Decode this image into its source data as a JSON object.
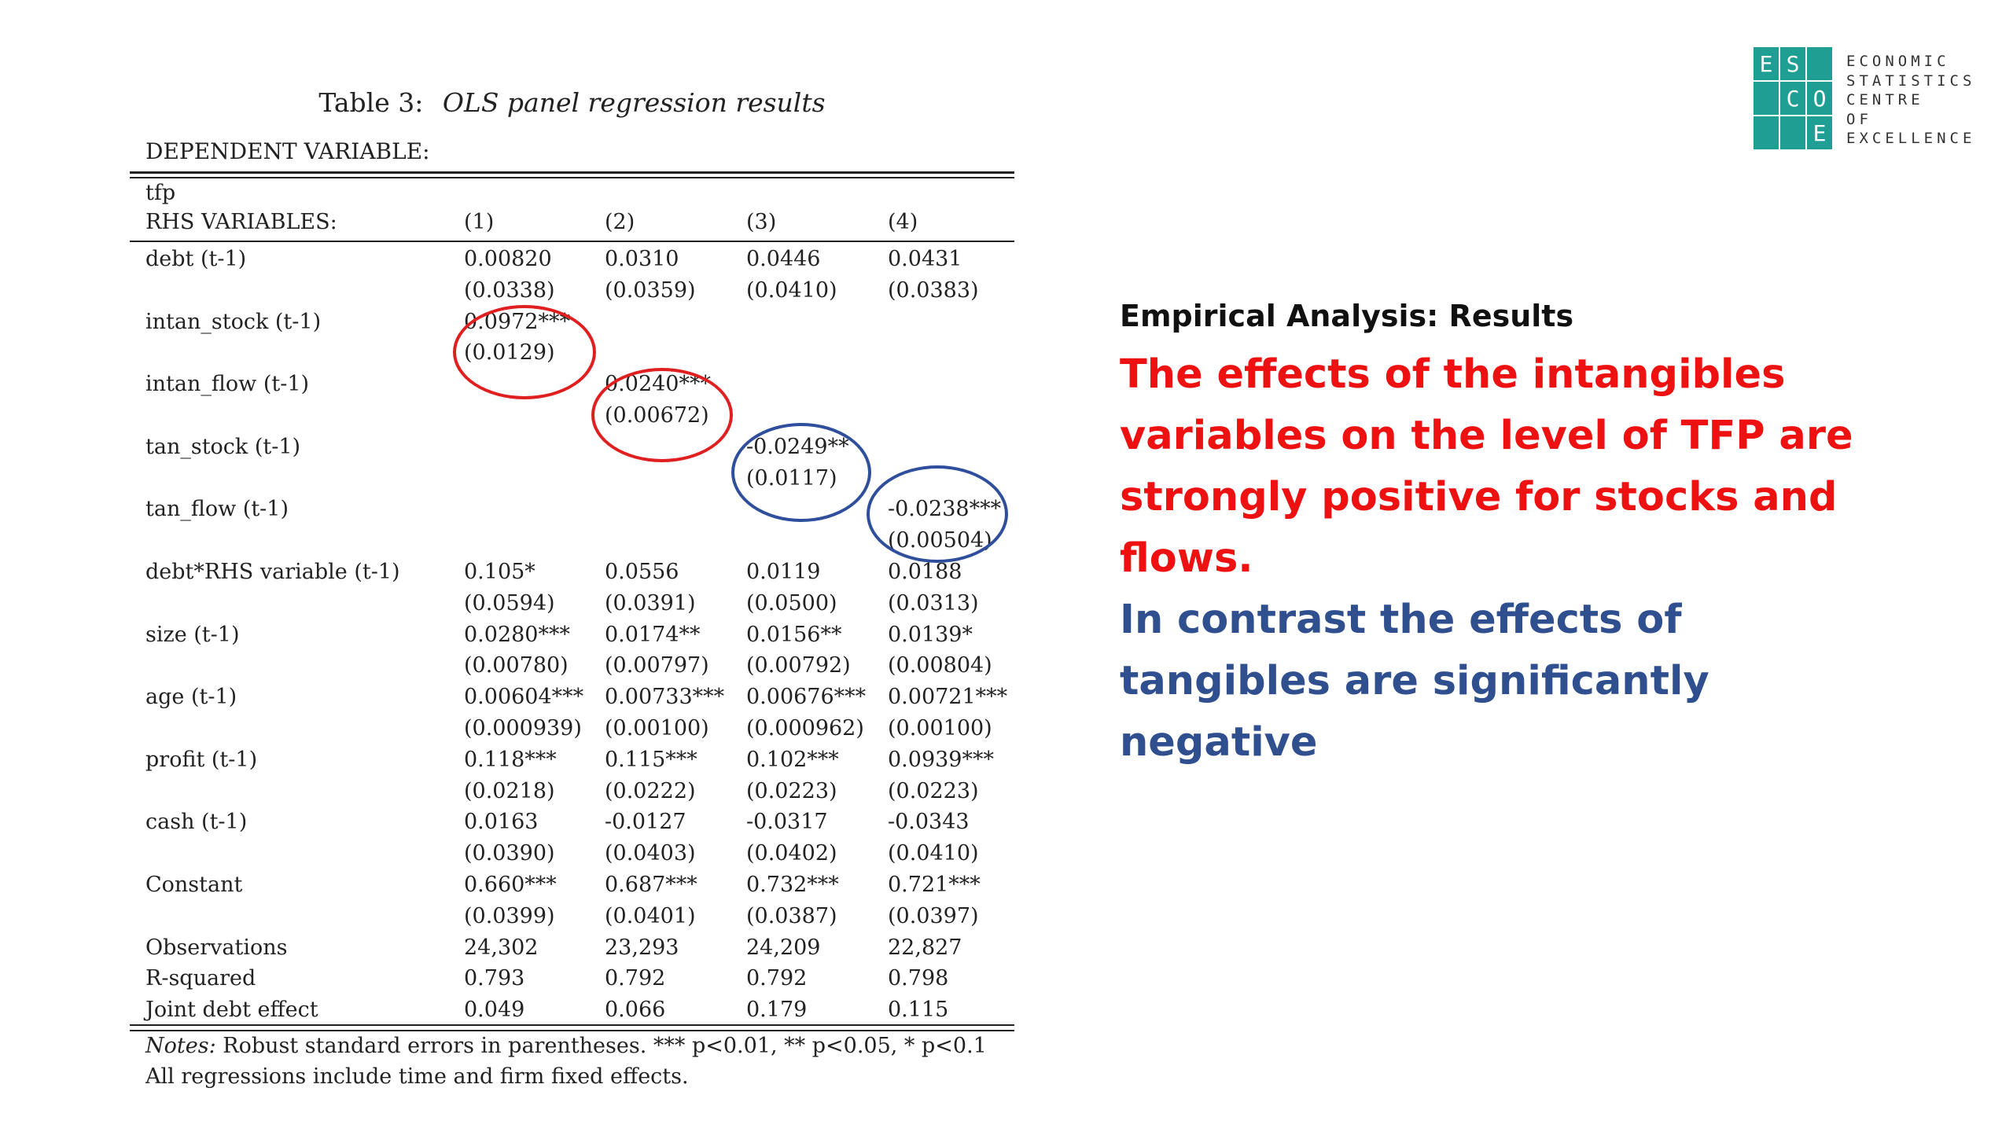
{
  "table": {
    "caption_label": "Table 3:",
    "caption_title": "OLS panel regression results",
    "dependent_variable_label": "DEPENDENT VARIABLE:",
    "dependent_variable": "tfp",
    "header": [
      "RHS VARIABLES:",
      "(1)",
      "(2)",
      "(3)",
      "(4)"
    ],
    "rows": [
      [
        "debt (t-1)",
        "0.00820",
        "0.0310",
        "0.0446",
        "0.0431"
      ],
      [
        "",
        "(0.0338)",
        "(0.0359)",
        "(0.0410)",
        "(0.0383)"
      ],
      [
        "intan_stock (t-1)",
        "0.0972***",
        "",
        "",
        ""
      ],
      [
        "",
        "(0.0129)",
        "",
        "",
        ""
      ],
      [
        "intan_flow (t-1)",
        "",
        "0.0240***",
        "",
        ""
      ],
      [
        "",
        "",
        "(0.00672)",
        "",
        ""
      ],
      [
        "tan_stock (t-1)",
        "",
        "",
        "-0.0249**",
        ""
      ],
      [
        "",
        "",
        "",
        "(0.0117)",
        ""
      ],
      [
        "tan_flow (t-1)",
        "",
        "",
        "",
        "-0.0238***"
      ],
      [
        "",
        "",
        "",
        "",
        "(0.00504)"
      ],
      [
        "debt*RHS variable (t-1)",
        "0.105*",
        "0.0556",
        "0.0119",
        "0.0188"
      ],
      [
        "",
        "(0.0594)",
        "(0.0391)",
        "(0.0500)",
        "(0.0313)"
      ],
      [
        "size (t-1)",
        "0.0280***",
        "0.0174**",
        "0.0156**",
        "0.0139*"
      ],
      [
        "",
        "(0.00780)",
        "(0.00797)",
        "(0.00792)",
        "(0.00804)"
      ],
      [
        "age (t-1)",
        "0.00604***",
        "0.00733***",
        "0.00676***",
        "0.00721***"
      ],
      [
        "",
        "(0.000939)",
        "(0.00100)",
        "(0.000962)",
        "(0.00100)"
      ],
      [
        "profit (t-1)",
        "0.118***",
        "0.115***",
        "0.102***",
        "0.0939***"
      ],
      [
        "",
        "(0.0218)",
        "(0.0222)",
        "(0.0223)",
        "(0.0223)"
      ],
      [
        "cash (t-1)",
        "0.0163",
        "-0.0127",
        "-0.0317",
        "-0.0343"
      ],
      [
        "",
        "(0.0390)",
        "(0.0403)",
        "(0.0402)",
        "(0.0410)"
      ],
      [
        "Constant",
        "0.660***",
        "0.687***",
        "0.732***",
        "0.721***"
      ],
      [
        "",
        "(0.0399)",
        "(0.0401)",
        "(0.0387)",
        "(0.0397)"
      ],
      [
        "Observations",
        "24,302",
        "23,293",
        "24,209",
        "22,827"
      ],
      [
        "R-squared",
        "0.793",
        "0.792",
        "0.792",
        "0.798"
      ],
      [
        "Joint debt effect",
        "0.049",
        "0.066",
        "0.179",
        "0.115"
      ]
    ],
    "notes_label": "Notes:",
    "notes_line1": "Robust standard errors in parentheses. *** p<0.01, ** p<0.05, * p<0.1",
    "notes_line2": "All regressions include time and firm fixed effects."
  },
  "highlights": [
    {
      "target": "intan_stock (t-1), column (1)",
      "color": "#e02020"
    },
    {
      "target": "intan_flow (t-1), column (2)",
      "color": "#e02020"
    },
    {
      "target": "tan_stock (t-1), column (3)",
      "color": "#2f4f9c"
    },
    {
      "target": "tan_flow (t-1), column (4)",
      "color": "#2f4f9c"
    }
  ],
  "right_text": {
    "heading": "Empirical Analysis: Results",
    "red_lines": [
      "The effects of the intangibles",
      "variables on the level of TFP are",
      "strongly positive for stocks and",
      "flows."
    ],
    "blue_lines": [
      "In contrast the effects of",
      "tangibles are significantly",
      "negative"
    ],
    "red_color": "#ee1111",
    "blue_color": "#2f4f8f"
  },
  "logo": {
    "cells": [
      "E",
      "S",
      "",
      "",
      "C",
      "O",
      "",
      "",
      "E"
    ],
    "text_lines": [
      "ECONOMIC",
      "STATISTICS",
      "CENTRE",
      "OF",
      "EXCELLENCE"
    ],
    "color": "#1f9e94"
  }
}
